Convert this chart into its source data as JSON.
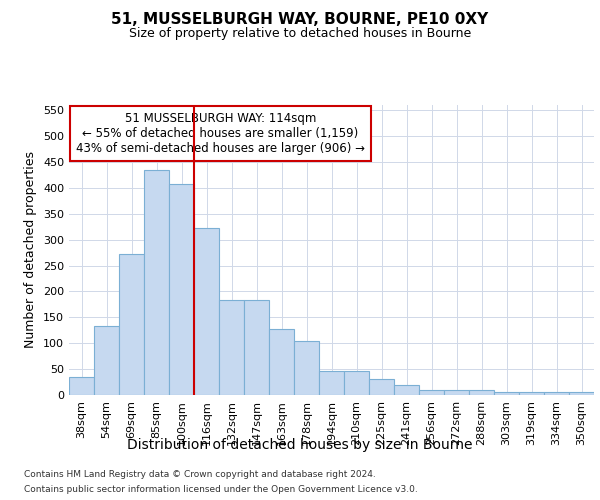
{
  "title": "51, MUSSELBURGH WAY, BOURNE, PE10 0XY",
  "subtitle": "Size of property relative to detached houses in Bourne",
  "xlabel": "Distribution of detached houses by size in Bourne",
  "ylabel": "Number of detached properties",
  "categories": [
    "38sqm",
    "54sqm",
    "69sqm",
    "85sqm",
    "100sqm",
    "116sqm",
    "132sqm",
    "147sqm",
    "163sqm",
    "178sqm",
    "194sqm",
    "210sqm",
    "225sqm",
    "241sqm",
    "256sqm",
    "272sqm",
    "288sqm",
    "303sqm",
    "319sqm",
    "334sqm",
    "350sqm"
  ],
  "values": [
    35,
    133,
    272,
    435,
    407,
    323,
    183,
    183,
    127,
    104,
    46,
    46,
    30,
    20,
    9,
    9,
    9,
    5,
    5,
    5,
    6
  ],
  "bar_color": "#c6d9f0",
  "bar_edge_color": "#7bafd4",
  "vline_color": "#cc0000",
  "annotation_line1": "51 MUSSELBURGH WAY: 114sqm",
  "annotation_line2": "← 55% of detached houses are smaller (1,159)",
  "annotation_line3": "43% of semi-detached houses are larger (906) →",
  "annotation_box_facecolor": "#ffffff",
  "annotation_box_edgecolor": "#cc0000",
  "ylim_max": 560,
  "yticks": [
    0,
    50,
    100,
    150,
    200,
    250,
    300,
    350,
    400,
    450,
    500,
    550
  ],
  "footnote1": "Contains HM Land Registry data © Crown copyright and database right 2024.",
  "footnote2": "Contains public sector information licensed under the Open Government Licence v3.0.",
  "bg_color": "#ffffff",
  "grid_color": "#d0d8e8",
  "title_fontsize": 11,
  "subtitle_fontsize": 9,
  "xlabel_fontsize": 10,
  "ylabel_fontsize": 9,
  "tick_fontsize": 8,
  "annot_fontsize": 8.5,
  "footnote_fontsize": 6.5
}
